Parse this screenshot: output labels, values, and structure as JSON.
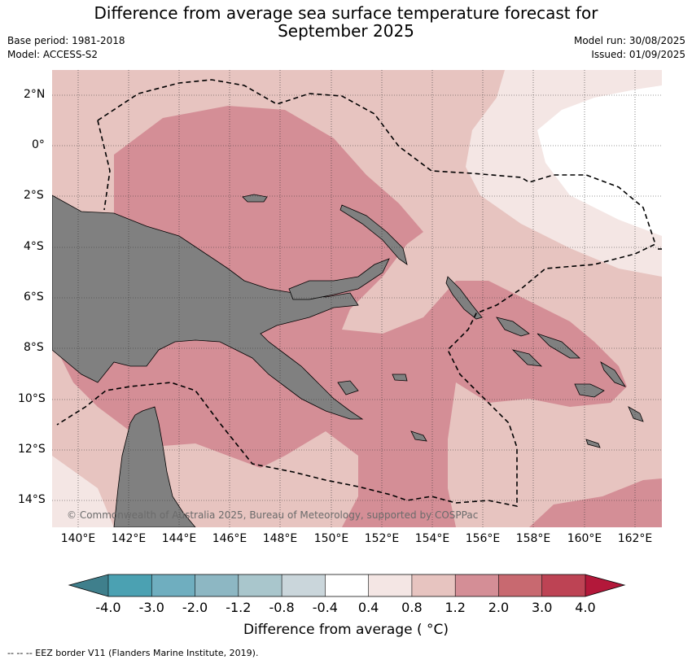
{
  "header": {
    "title_line1": "Difference from average sea surface temperature forecast for",
    "title_line2": "September 2025",
    "base_period": "Base period: 1981-2018",
    "model": "Model: ACCESS-S2",
    "model_run": "Model run: 30/08/2025",
    "issued": "Issued: 01/09/2025"
  },
  "map": {
    "lat_labels": [
      "2°N",
      "0°",
      "2°S",
      "4°S",
      "6°S",
      "8°S",
      "10°S",
      "12°S",
      "14°S"
    ],
    "lon_labels": [
      "140°E",
      "142°E",
      "144°E",
      "146°E",
      "148°E",
      "150°E",
      "152°E",
      "154°E",
      "156°E",
      "158°E",
      "160°E",
      "162°E"
    ],
    "copyright": "© Commonwealth of Australia 2025, Bureau of Meteorology, supported by COSPPac",
    "land_color": "#808080"
  },
  "colorbar": {
    "tick_labels": [
      "-4.0",
      "-3.0",
      "-2.0",
      "-1.2",
      "-0.8",
      "-0.4",
      "0.4",
      "0.8",
      "1.2",
      "2.0",
      "3.0",
      "4.0"
    ],
    "colors": [
      "#3f7f8c",
      "#4ba1b2",
      "#6faebf",
      "#8db7c3",
      "#a9c6cc",
      "#cad6db",
      "#ffffff",
      "#f4e6e4",
      "#e7c4c0",
      "#d48e96",
      "#c86970",
      "#bd4354",
      "#b3183a"
    ],
    "label": "Difference from average ( °C)"
  },
  "footer": {
    "text": "-- -- -- EEZ border V11 (Flanders Marine Institute, 2019)."
  }
}
